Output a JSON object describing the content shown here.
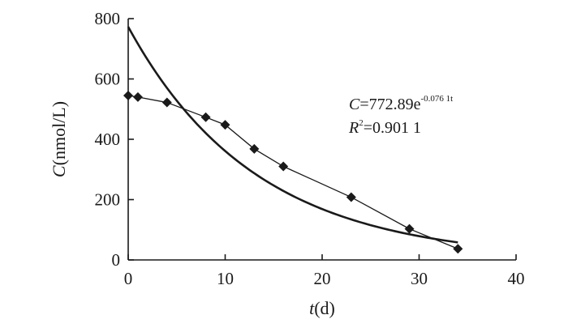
{
  "chart_data": {
    "type": "scatter",
    "title": "",
    "xlabel": {
      "italic": "t",
      "rest": "(d)"
    },
    "ylabel": {
      "italic": "C",
      "rest": "(nmol/L)"
    },
    "xlim": [
      0,
      40
    ],
    "ylim": [
      0,
      800
    ],
    "xticks": [
      0,
      10,
      20,
      30,
      40
    ],
    "yticks": [
      0,
      200,
      400,
      600,
      800
    ],
    "grid": false,
    "series": [
      {
        "kind": "observed",
        "marker": "diamond",
        "connected": true,
        "points": [
          {
            "x": 0,
            "y": 545
          },
          {
            "x": 1,
            "y": 540
          },
          {
            "x": 4,
            "y": 522
          },
          {
            "x": 8,
            "y": 473
          },
          {
            "x": 10,
            "y": 448
          },
          {
            "x": 13,
            "y": 368
          },
          {
            "x": 16,
            "y": 310
          },
          {
            "x": 23,
            "y": 208
          },
          {
            "x": 29,
            "y": 103
          },
          {
            "x": 34,
            "y": 37
          }
        ]
      },
      {
        "kind": "exponential-fit",
        "a": 772.89,
        "k": 0.0761,
        "x_range": [
          0,
          34
        ]
      }
    ],
    "annotations": {
      "equation": {
        "lhs": "C",
        "eq": "=772.89e",
        "exponent": "-0.076 1t"
      },
      "r2": {
        "sym": "R",
        "sup": "2",
        "value": "=0.901 1"
      }
    }
  },
  "colors": {
    "ink": "#1a1a1a",
    "background": "#ffffff"
  }
}
